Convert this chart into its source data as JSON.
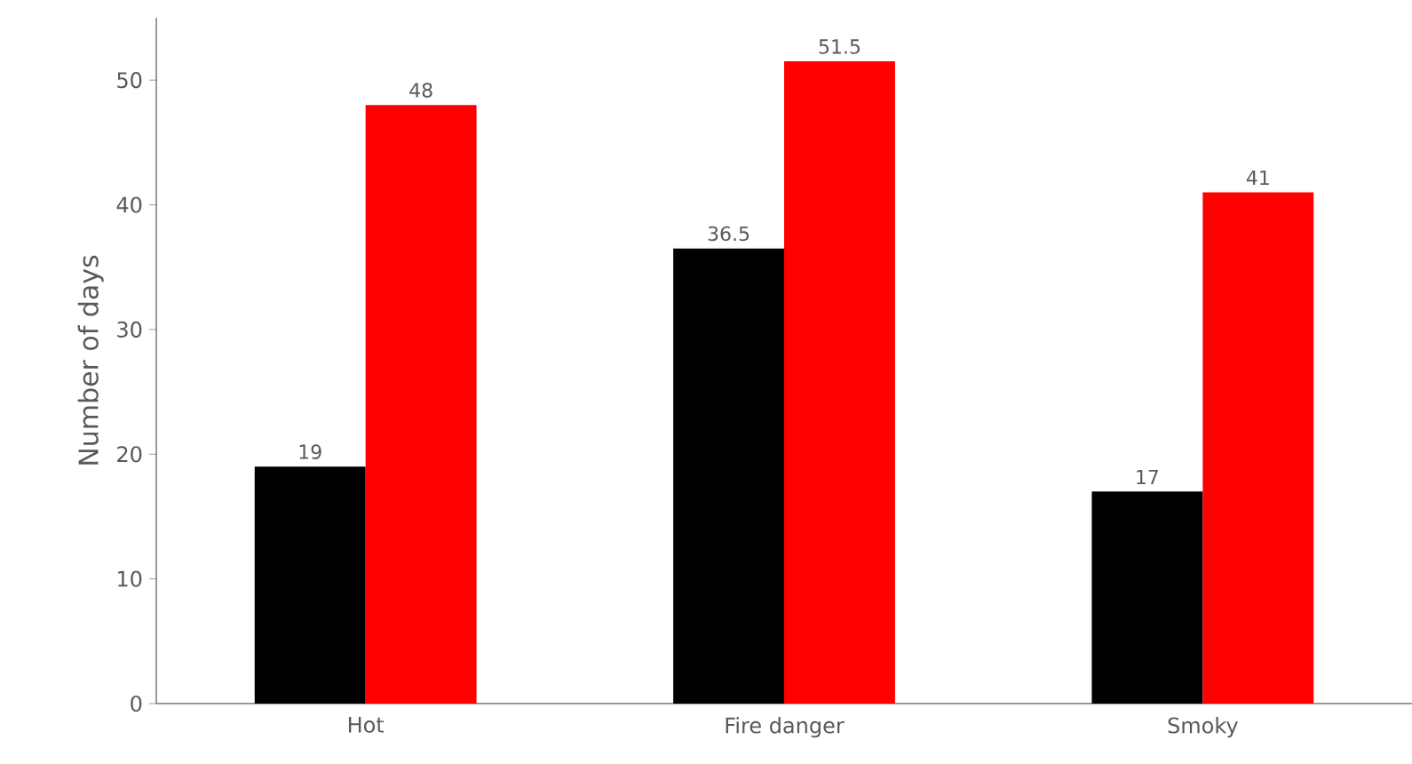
{
  "chart_data": {
    "type": "bar",
    "categories": [
      "Hot",
      "Fire danger",
      "Smoky"
    ],
    "series": [
      {
        "color": "#000000",
        "values": [
          19,
          36.5,
          17
        ]
      },
      {
        "color": "#ff0000",
        "values": [
          48,
          51.5,
          41
        ]
      }
    ],
    "ylabel": "Number of days",
    "ylim": [
      0,
      55
    ],
    "yticks": [
      0,
      10,
      20,
      30,
      40,
      50
    ],
    "data_labels": true,
    "grid": false
  }
}
